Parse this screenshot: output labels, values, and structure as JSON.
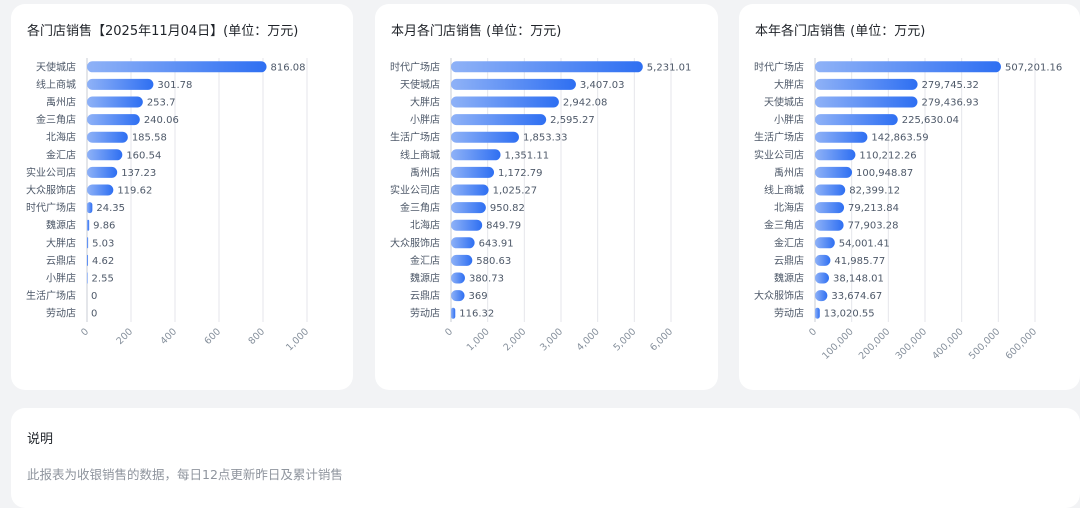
{
  "chart_data": [
    {
      "type": "bar",
      "orientation": "horizontal",
      "title": "各门店销售【2025年11月04日】(单位：万元)",
      "categories": [
        "天使城店",
        "线上商城",
        "禹州店",
        "金三角店",
        "北海店",
        "金汇店",
        "实业公司店",
        "大众服饰店",
        "时代广场店",
        "魏源店",
        "大胖店",
        "云鼎店",
        "小胖店",
        "生活广场店",
        "劳动店"
      ],
      "values": [
        816.08,
        301.78,
        253.7,
        240.06,
        185.58,
        160.54,
        137.23,
        119.62,
        24.35,
        9.86,
        5.03,
        4.62,
        2.55,
        0,
        0
      ],
      "value_labels": [
        "816.08",
        "301.78",
        "253.7",
        "240.06",
        "185.58",
        "160.54",
        "137.23",
        "119.62",
        "24.35",
        "9.86",
        "5.03",
        "4.62",
        "2.55",
        "0",
        "0"
      ],
      "xlim": [
        0,
        1000
      ],
      "ticks": [
        0,
        200,
        400,
        600,
        800,
        1000
      ],
      "tick_labels": [
        "0",
        "200",
        "400",
        "600",
        "800",
        "1,000"
      ],
      "grid": true,
      "color": "#2e6ff2"
    },
    {
      "type": "bar",
      "orientation": "horizontal",
      "title": "本月各门店销售 (单位：万元)",
      "categories": [
        "时代广场店",
        "天使城店",
        "大胖店",
        "小胖店",
        "生活广场店",
        "线上商城",
        "禹州店",
        "实业公司店",
        "金三角店",
        "北海店",
        "大众服饰店",
        "金汇店",
        "魏源店",
        "云鼎店",
        "劳动店"
      ],
      "values": [
        5231.01,
        3407.03,
        2942.08,
        2595.27,
        1853.33,
        1351.11,
        1172.79,
        1025.27,
        950.82,
        849.79,
        643.91,
        580.63,
        380.73,
        369,
        116.32
      ],
      "value_labels": [
        "5,231.01",
        "3,407.03",
        "2,942.08",
        "2,595.27",
        "1,853.33",
        "1,351.11",
        "1,172.79",
        "1,025.27",
        "950.82",
        "849.79",
        "643.91",
        "580.63",
        "380.73",
        "369",
        "116.32"
      ],
      "xlim": [
        0,
        6000
      ],
      "ticks": [
        0,
        1000,
        2000,
        3000,
        4000,
        5000,
        6000
      ],
      "tick_labels": [
        "0",
        "1,000",
        "2,000",
        "3,000",
        "4,000",
        "5,000",
        "6,000"
      ],
      "grid": true,
      "color": "#2e6ff2"
    },
    {
      "type": "bar",
      "orientation": "horizontal",
      "title": "本年各门店销售 (单位：万元)",
      "categories": [
        "时代广场店",
        "大胖店",
        "天使城店",
        "小胖店",
        "生活广场店",
        "实业公司店",
        "禹州店",
        "线上商城",
        "北海店",
        "金三角店",
        "金汇店",
        "云鼎店",
        "魏源店",
        "大众服饰店",
        "劳动店"
      ],
      "values": [
        507201.16,
        279745.32,
        279436.93,
        225630.04,
        142863.59,
        110212.26,
        100948.87,
        82399.12,
        79213.84,
        77903.28,
        54001.41,
        41985.77,
        38148.01,
        33674.67,
        13020.55
      ],
      "value_labels": [
        "507,201.16",
        "279,745.32",
        "279,436.93",
        "225,630.04",
        "142,863.59",
        "110,212.26",
        "100,948.87",
        "82,399.12",
        "79,213.84",
        "77,903.28",
        "54,001.41",
        "41,985.77",
        "38,148.01",
        "33,674.67",
        "13,020.55"
      ],
      "xlim": [
        0,
        600000
      ],
      "ticks": [
        0,
        100000,
        200000,
        300000,
        400000,
        500000,
        600000
      ],
      "tick_labels": [
        "0",
        "100,000",
        "200,000",
        "300,000",
        "400,000",
        "500,000",
        "600,000"
      ],
      "grid": true,
      "color": "#2e6ff2"
    }
  ],
  "note": {
    "title": "说明",
    "text": "此报表为收银销售的数据，每日12点更新昨日及累计销售"
  }
}
